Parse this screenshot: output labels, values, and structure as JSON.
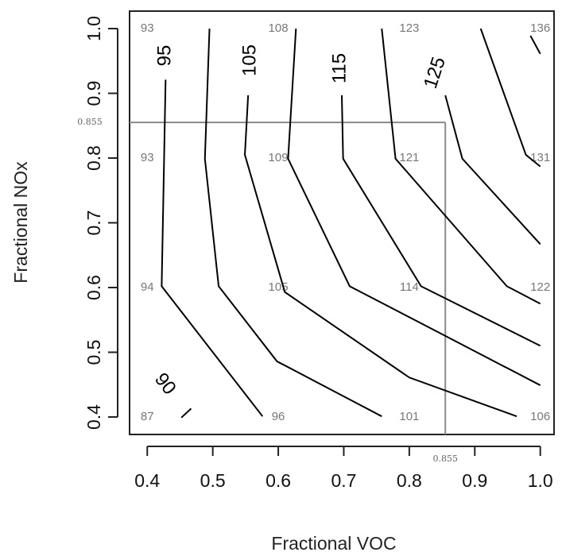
{
  "chart_data": {
    "type": "contour",
    "x_label": "Fractional VOC",
    "y_label": "Fractional NOx",
    "xlim": [
      0.373,
      1.021
    ],
    "ylim": [
      0.373,
      1.027
    ],
    "xticks": [
      0.4,
      0.5,
      0.6,
      0.7,
      0.8,
      0.9,
      {
        "value": 1,
        "label": "1.0"
      }
    ],
    "yticks": [
      0.4,
      0.5,
      0.6,
      0.7,
      0.8,
      0.9,
      {
        "value": 1,
        "label": "1.0"
      }
    ],
    "grid_x": [
      0.4,
      0.6,
      0.8,
      1.0
    ],
    "grid_y": [
      1.0,
      0.8,
      0.6,
      0.4
    ],
    "grid_values": [
      [
        93,
        108,
        123,
        136
      ],
      [
        93,
        109,
        121,
        131
      ],
      [
        94,
        105,
        114,
        122
      ],
      [
        87,
        96,
        101,
        106
      ]
    ],
    "contours": [
      {
        "label": 90,
        "x": [
          0.452,
          0.467
        ],
        "y": [
          0.399,
          0.413
        ]
      },
      {
        "label": 95,
        "x": [
          0.428,
          0.422,
          0.576
        ],
        "y": [
          0.921,
          0.602,
          0.401
        ]
      },
      {
        "x": [
          0.495,
          0.488,
          0.509,
          0.598,
          0.758
        ],
        "y": [
          1.0,
          0.799,
          0.602,
          0.486,
          0.401
        ]
      },
      {
        "label": 105,
        "x": [
          0.554,
          0.549,
          0.61,
          0.8,
          0.964
        ],
        "y": [
          0.897,
          0.805,
          0.593,
          0.461,
          0.401
        ]
      },
      {
        "x": [
          0.627,
          0.615,
          0.709,
          0.848,
          1.0
        ],
        "y": [
          1.0,
          0.799,
          0.602,
          0.529,
          0.449
        ]
      },
      {
        "label": 115,
        "x": [
          0.697,
          0.699,
          0.818,
          1.0
        ],
        "y": [
          0.897,
          0.799,
          0.602,
          0.51
        ]
      },
      {
        "x": [
          0.758,
          0.779,
          0.848,
          0.949,
          1.0
        ],
        "y": [
          1.0,
          0.799,
          0.719,
          0.602,
          0.575
        ]
      },
      {
        "label": 125,
        "x": [
          0.855,
          0.881,
          1.0
        ],
        "y": [
          0.897,
          0.799,
          0.667
        ]
      },
      {
        "x": [
          0.909,
          0.978,
          1.0
        ],
        "y": [
          1.0,
          0.805,
          0.787
        ]
      },
      {
        "x": [
          0.985,
          1.0
        ],
        "y": [
          0.989,
          0.961
        ]
      }
    ],
    "reference_x": 0.855,
    "reference_y": 0.855,
    "line_color": "#000000",
    "reference_color": "#8a8a8a"
  }
}
